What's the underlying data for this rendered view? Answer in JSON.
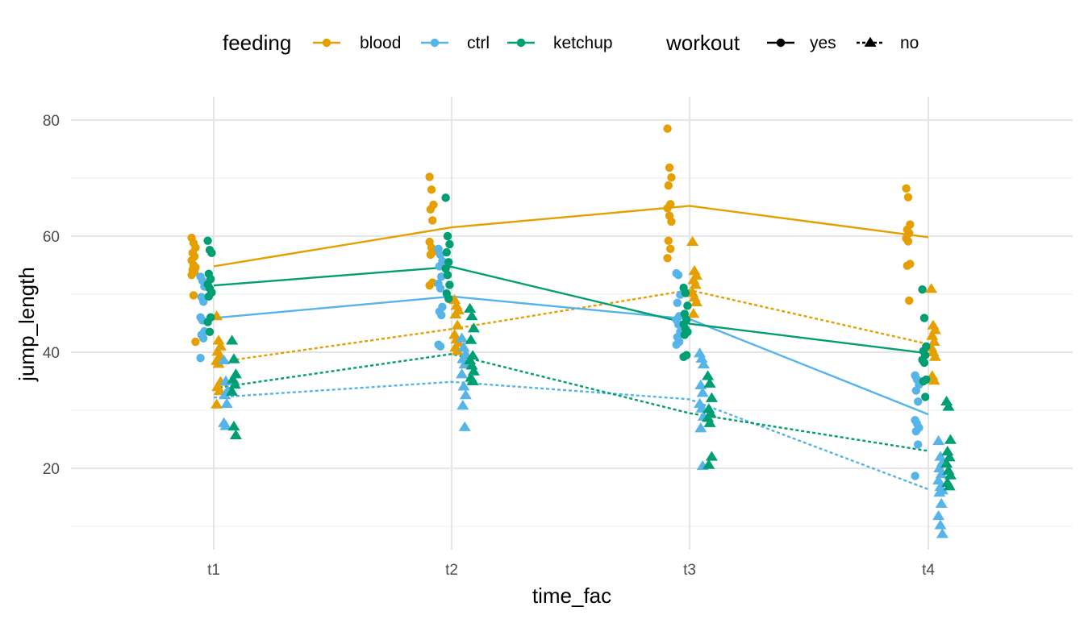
{
  "chart_data": {
    "type": "scatter",
    "xlabel": "time_fac",
    "ylabel": "jump_length",
    "categories": [
      "t1",
      "t2",
      "t3",
      "t4"
    ],
    "ylim": [
      6,
      84
    ],
    "yticks": [
      20,
      40,
      60,
      80
    ],
    "grid": true,
    "legend_position": "top",
    "legends": [
      {
        "title": "feeding",
        "entries": [
          {
            "label": "blood",
            "color": "#E69F00"
          },
          {
            "label": "ctrl",
            "color": "#56B4E9"
          },
          {
            "label": "ketchup",
            "color": "#009E73"
          }
        ]
      },
      {
        "title": "workout",
        "entries": [
          {
            "label": "yes",
            "shape": "circle",
            "linetype": "solid"
          },
          {
            "label": "no",
            "shape": "triangle",
            "linetype": "dotted"
          }
        ]
      }
    ],
    "groups": [
      {
        "feeding": "blood",
        "workout": "yes",
        "color": "#E69F00",
        "shape": "circle",
        "linetype": "solid",
        "means": [
          54.8,
          61.5,
          65.2,
          59.8
        ],
        "points": [
          [
            59.7,
            58.8,
            58.0,
            57.1,
            56.5,
            55.8,
            55.0,
            54.6,
            54.2,
            53.8,
            53.3,
            49.8,
            41.8
          ],
          [
            70.2,
            68.0,
            65.4,
            64.6,
            62.7,
            59.0,
            58.0,
            57.3,
            56.8,
            52.0,
            51.5
          ],
          [
            78.5,
            71.8,
            70.1,
            68.7,
            65.5,
            64.8,
            63.5,
            62.5,
            59.2,
            57.8,
            56.2
          ],
          [
            68.2,
            66.7,
            62.0,
            61.1,
            60.5,
            59.6,
            59.1,
            55.2,
            54.9,
            48.9
          ]
        ]
      },
      {
        "feeding": "blood",
        "workout": "no",
        "color": "#E69F00",
        "shape": "triangle",
        "linetype": "dotted",
        "means": [
          38.2,
          44.0,
          50.7,
          41.4
        ],
        "points": [
          [
            46.2,
            42.0,
            41.0,
            40.1,
            39.2,
            38.5,
            38.0,
            34.9,
            34.0,
            33.3,
            31.0
          ],
          [
            49.0,
            48.0,
            47.2,
            46.5,
            44.6,
            43.0,
            42.2,
            41.6,
            40.8,
            40.2
          ],
          [
            59.0,
            54.0,
            53.2,
            52.4,
            51.6,
            50.2,
            49.4,
            48.6,
            46.6
          ],
          [
            50.9,
            44.6,
            43.8,
            42.8,
            41.8,
            40.8,
            40.0,
            39.2,
            35.9,
            35.1
          ]
        ]
      },
      {
        "feeding": "ctrl",
        "workout": "yes",
        "color": "#56B4E9",
        "shape": "circle",
        "linetype": "solid",
        "means": [
          45.9,
          49.6,
          45.7,
          29.3
        ],
        "points": [
          [
            53.0,
            52.3,
            51.3,
            49.5,
            48.7,
            46.0,
            45.5,
            43.6,
            43.0,
            42.4,
            39.0
          ],
          [
            57.8,
            56.8,
            55.7,
            54.8,
            53.0,
            51.8,
            51.0,
            47.8,
            47.0,
            46.4,
            41.3,
            41.0
          ],
          [
            53.6,
            53.3,
            49.9,
            48.5,
            46.2,
            45.6,
            44.8,
            43.5,
            42.6,
            41.8,
            41.3
          ],
          [
            36.0,
            35.3,
            34.4,
            33.4,
            31.5,
            28.3,
            27.7,
            27.0,
            26.4,
            24.1,
            18.7
          ]
        ]
      },
      {
        "feeding": "ctrl",
        "workout": "no",
        "color": "#56B4E9",
        "shape": "triangle",
        "linetype": "dotted",
        "means": [
          32.2,
          34.9,
          31.9,
          16.4
        ],
        "points": [
          [
            38.6,
            35.0,
            33.4,
            32.6,
            31.1,
            27.8,
            27.3
          ],
          [
            42.4,
            40.8,
            39.7,
            38.8,
            37.9,
            36.2,
            34.1,
            32.6,
            30.8,
            27.1
          ],
          [
            39.8,
            38.9,
            37.9,
            34.3,
            33.0,
            31.1,
            30.3,
            28.9,
            26.9,
            20.4
          ],
          [
            24.7,
            22.0,
            21.0,
            20.0,
            19.0,
            17.9,
            16.8,
            16.2,
            15.8,
            13.9,
            11.8,
            10.2,
            8.7
          ]
        ]
      },
      {
        "feeding": "ketchup",
        "workout": "yes",
        "color": "#009E73",
        "shape": "circle",
        "linetype": "solid",
        "means": [
          51.5,
          54.7,
          44.9,
          39.8
        ],
        "points": [
          [
            59.2,
            57.6,
            57.1,
            53.5,
            52.6,
            51.7,
            51.0,
            50.3,
            49.6,
            46.0,
            45.2,
            43.5
          ],
          [
            66.6,
            60.0,
            58.6,
            57.2,
            55.5,
            54.4,
            53.3,
            51.6,
            50.1,
            49.2
          ],
          [
            51.1,
            50.2,
            48.0,
            46.6,
            45.6,
            44.8,
            44.0,
            43.5,
            43.0,
            39.5,
            39.2
          ],
          [
            50.8,
            45.9,
            41.0,
            40.2,
            39.5,
            38.7,
            38.2,
            35.3,
            35.0,
            32.3
          ]
        ]
      },
      {
        "feeding": "ketchup",
        "workout": "no",
        "color": "#009E73",
        "shape": "triangle",
        "linetype": "dotted",
        "means": [
          33.8,
          39.7,
          29.5,
          23.0
        ],
        "points": [
          [
            42.0,
            38.8,
            36.2,
            35.3,
            34.4,
            33.2,
            27.2,
            25.7
          ],
          [
            47.5,
            46.2,
            44.1,
            42.1,
            39.4,
            38.6,
            37.7,
            36.7,
            35.6,
            35.0
          ],
          [
            35.9,
            34.6,
            32.1,
            30.2,
            29.4,
            28.7,
            27.8,
            22.0,
            20.6
          ],
          [
            31.5,
            30.6,
            24.9,
            22.9,
            21.9,
            20.8,
            19.6,
            18.8,
            17.5,
            16.9
          ]
        ]
      }
    ]
  }
}
